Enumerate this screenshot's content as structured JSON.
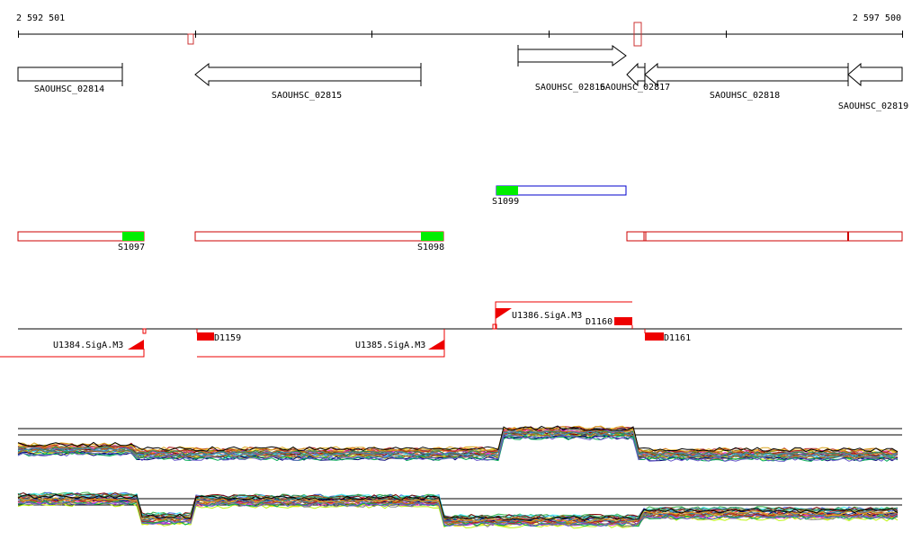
{
  "ruler": {
    "start_label": "2 592 501",
    "end_label": "2 597 500",
    "start": 2592501,
    "end": 2597500,
    "ticks": [
      2592501,
      2593501,
      2594501,
      2595501,
      2596501,
      2597500
    ]
  },
  "genes": [
    {
      "label": "SAOUHSC_02814",
      "start": 2592501,
      "end": 2593093,
      "strand": "+"
    },
    {
      "label": "SAOUHSC_02815",
      "start": 2593505,
      "end": 2594768,
      "strand": "-"
    },
    {
      "label": "SAOUHSC_02816",
      "start": 2595331,
      "end": 2595937,
      "strand": "+"
    },
    {
      "label": "SAOUHSC_02817",
      "start": 2595937,
      "end": 2596044,
      "strand": "-"
    },
    {
      "label": "SAOUHSC_02818",
      "start": 2596044,
      "end": 2597152,
      "strand": "-"
    },
    {
      "label": "SAOUHSC_02819",
      "start": 2597152,
      "end": 2597500,
      "strand": "-"
    }
  ],
  "segments": [
    {
      "label": "S1097"
    },
    {
      "label": "S1098"
    },
    {
      "label": "S1099"
    }
  ],
  "promoters": [
    {
      "label": "U1384.SigA.M3"
    },
    {
      "label": "U1385.SigA.M3"
    },
    {
      "label": "U1386.SigA.M3"
    }
  ],
  "terminators": [
    {
      "label": "D1159"
    },
    {
      "label": "D1160"
    },
    {
      "label": "D1161"
    }
  ],
  "colors": {
    "gene": "#000000",
    "segment": "#cc0000",
    "segment_blue": "#0000cc",
    "segment_fill": "#00ee00",
    "feature": "#ee0000",
    "axis": "#000000"
  }
}
